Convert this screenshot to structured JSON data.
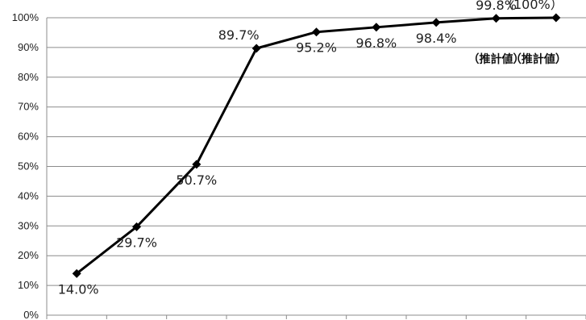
{
  "chart_data": {
    "type": "line",
    "title": "",
    "xlabel": "",
    "ylabel": "",
    "ylim": [
      0,
      100
    ],
    "y_ticks": [
      "0%",
      "10%",
      "20%",
      "30%",
      "40%",
      "50%",
      "60%",
      "70%",
      "80%",
      "90%",
      "100%"
    ],
    "categories": [
      "",
      "",
      "",
      "",
      "",
      "",
      "",
      "",
      ""
    ],
    "series": [
      {
        "values": [
          14.0,
          29.7,
          50.7,
          89.7,
          95.2,
          96.8,
          98.4,
          99.8,
          100
        ],
        "labels": [
          "14.0%",
          "29.7%",
          "50.7%",
          "89.7%",
          "95.2%",
          "96.8%",
          "98.4%",
          "99.8%",
          "（100%）"
        ],
        "label_positions": [
          "below",
          "below",
          "below",
          "above",
          "below",
          "below",
          "below",
          "above",
          "above"
        ],
        "label_colors": [
          "#222222",
          "#222222",
          "#222222",
          "#222222",
          "#222222",
          "#222222",
          "#222222",
          "#222222",
          "#e02020"
        ],
        "color": "#000000",
        "marker": "diamond"
      }
    ],
    "annotations": [
      {
        "index": 7,
        "text": "（推計値）"
      },
      {
        "index": 8,
        "text": "（推計値）"
      }
    ],
    "grid": true,
    "legend": "none"
  }
}
